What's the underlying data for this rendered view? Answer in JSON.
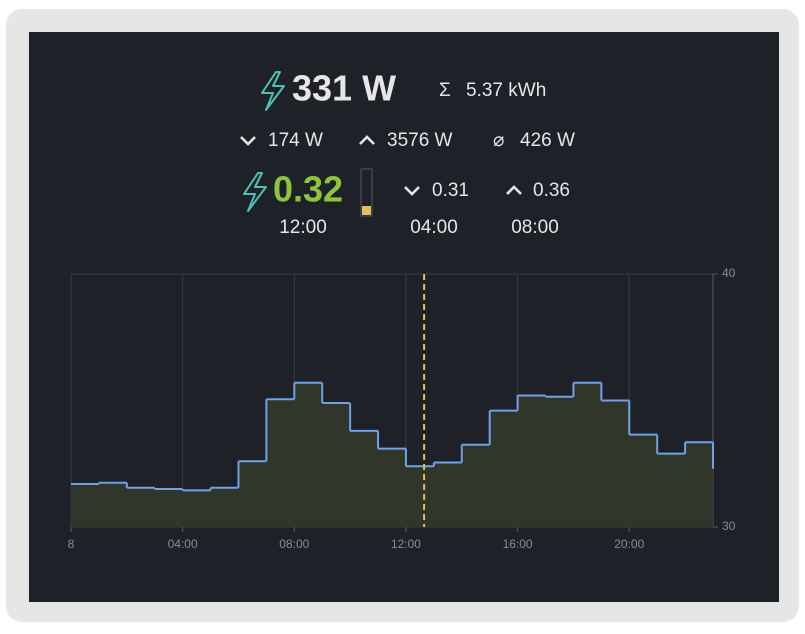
{
  "power": {
    "current": "331 W",
    "energy_symbol": "Σ",
    "energy": "5.37 kWh"
  },
  "stats": {
    "min": "174 W",
    "max": "3576 W",
    "avg_symbol": "⌀",
    "avg": "426 W"
  },
  "price": {
    "current": "0.32",
    "current_time": "12:00",
    "min": "0.31",
    "min_time": "04:00",
    "max": "0.36",
    "max_time": "08:00"
  },
  "chart_data": {
    "type": "step",
    "x": [
      0,
      1,
      2,
      3,
      4,
      5,
      6,
      7,
      8,
      9,
      10,
      11,
      12,
      13,
      14,
      15,
      16,
      17,
      18,
      19,
      20,
      21,
      22,
      23
    ],
    "values": [
      31.7,
      31.75,
      31.55,
      31.5,
      31.45,
      31.55,
      32.6,
      35.05,
      35.7,
      34.9,
      33.8,
      33.1,
      32.4,
      32.55,
      33.25,
      34.6,
      35.2,
      35.15,
      35.7,
      35.0,
      33.65,
      32.9,
      33.35,
      32.3
    ],
    "color": "#6fa2e6",
    "fill_color": "#30362a",
    "xlim": [
      0,
      23
    ],
    "xticks": [
      {
        "value": 0,
        "label": "8"
      },
      {
        "value": 4,
        "label": "04:00"
      },
      {
        "value": 8,
        "label": "08:00"
      },
      {
        "value": 12,
        "label": "12:00"
      },
      {
        "value": 16,
        "label": "16:00"
      },
      {
        "value": 20,
        "label": "20:00"
      }
    ],
    "ylim": [
      30,
      40
    ],
    "yticks": [
      30,
      40
    ],
    "grid": true,
    "marker_x": 12.65,
    "marker_color": "#e3bf5a"
  }
}
